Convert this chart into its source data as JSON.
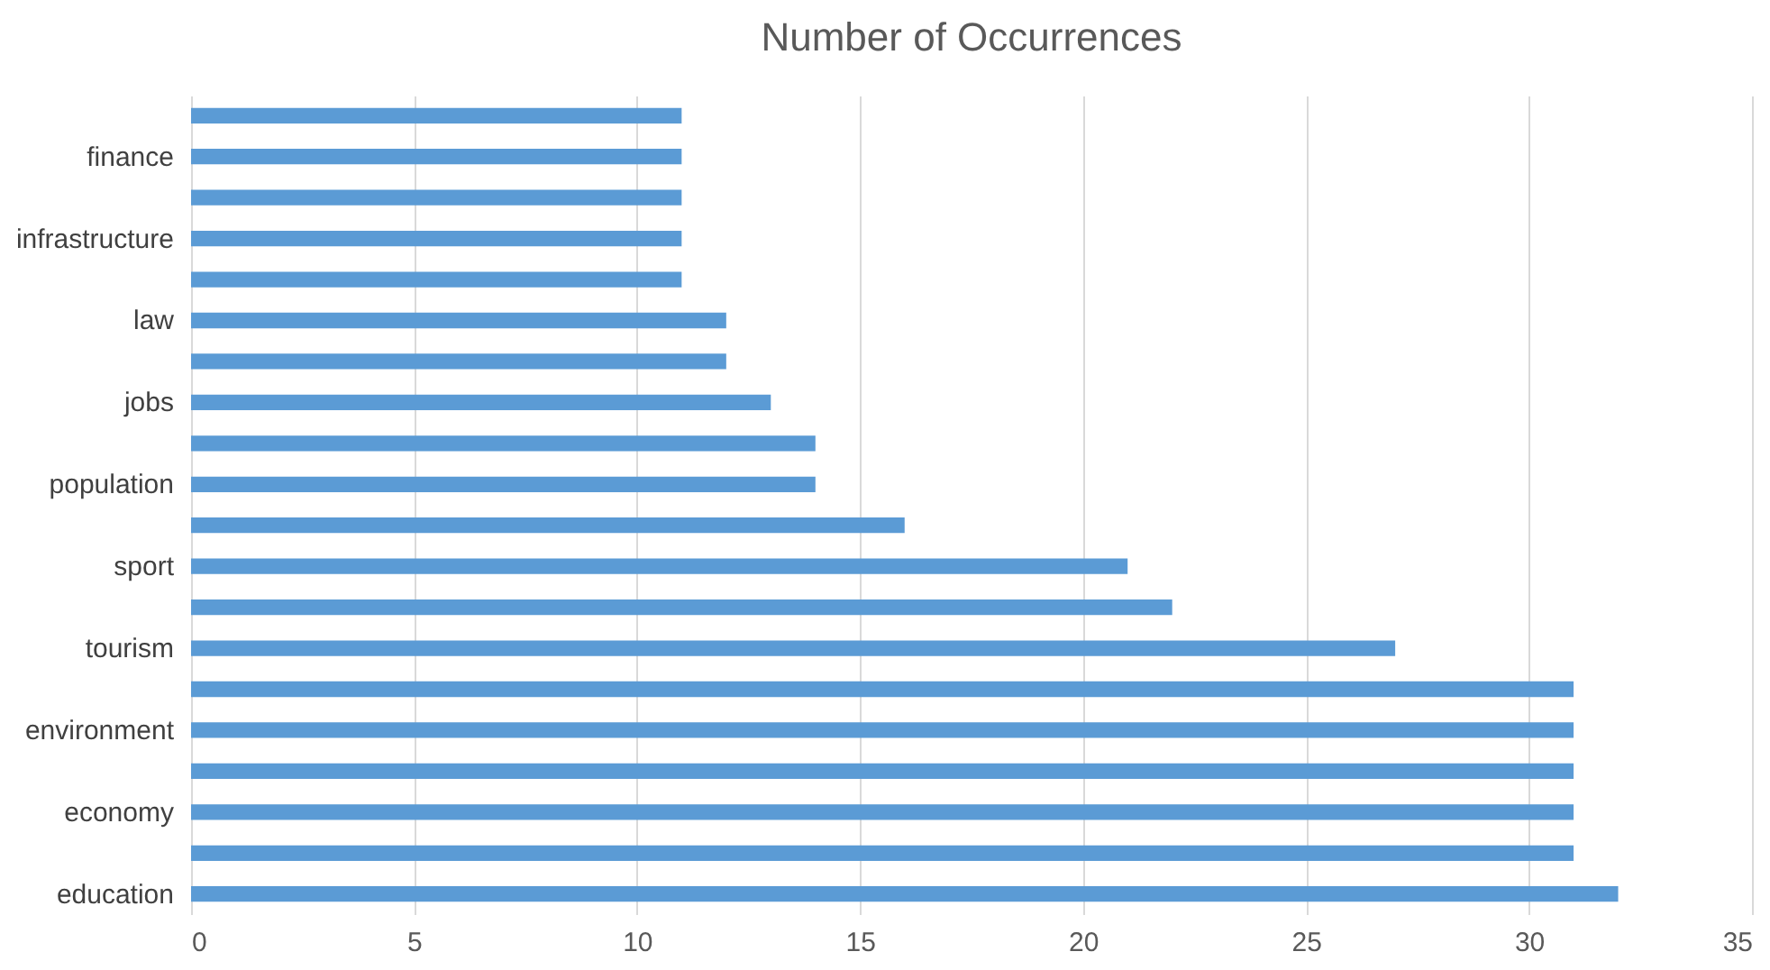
{
  "chart_data": {
    "type": "bar",
    "orientation": "horizontal",
    "title": "Number of Occurrences",
    "categories": [
      null,
      "finance",
      null,
      "infrastructure",
      null,
      "law",
      null,
      "jobs",
      null,
      "population",
      null,
      "sport",
      null,
      "tourism",
      null,
      "environment",
      null,
      "economy",
      null,
      "education"
    ],
    "values": [
      11,
      11,
      11,
      11,
      11,
      12,
      12,
      13,
      14,
      14,
      16,
      21,
      22,
      27,
      31,
      31,
      31,
      31,
      31,
      32
    ],
    "color": "#5b9bd5",
    "xlim": [
      0,
      35
    ],
    "xticks": [
      0,
      5,
      10,
      15,
      20,
      25,
      30,
      35
    ],
    "grid": "x"
  }
}
